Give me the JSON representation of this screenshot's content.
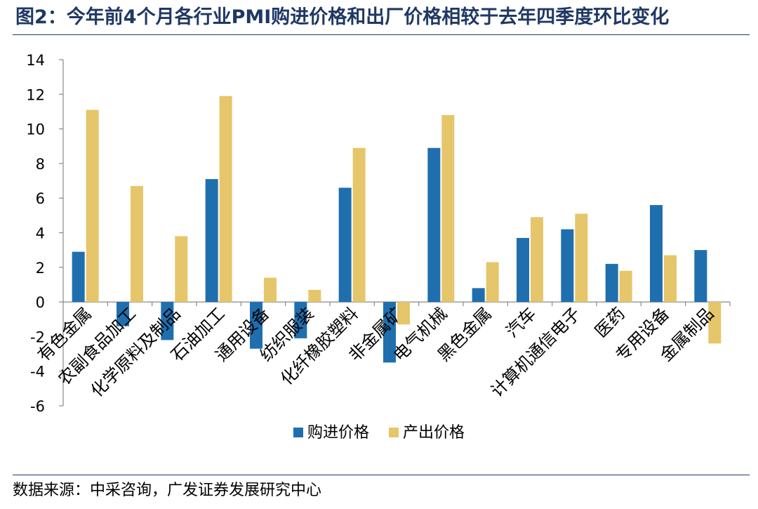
{
  "header": {
    "title": "图2：今年前4个月各行业PMI购进价格和出厂价格相较于去年四季度环比变化"
  },
  "footer": {
    "source": "数据来源：中采咨询，广发证券发展研究中心"
  },
  "chart_data": {
    "type": "bar",
    "title": "",
    "xlabel": "",
    "ylabel": "",
    "ylim": [
      -6,
      14
    ],
    "yticks": [
      "14",
      "12",
      "10",
      "8",
      "6",
      "4",
      "2",
      "0",
      "-2",
      "-4",
      "-6"
    ],
    "yticks_values": [
      14,
      12,
      10,
      8,
      6,
      4,
      2,
      0,
      -2,
      -4,
      -6
    ],
    "categories": [
      "有色金属",
      "农副食品加工",
      "化学原料及制品",
      "石油加工",
      "通用设备",
      "纺织服装",
      "化纤橡胶塑料",
      "非金属矿",
      "电气机械",
      "黑色金属",
      "汽车",
      "计算机通信电子",
      "医药",
      "专用设备",
      "金属制品"
    ],
    "series": [
      {
        "name": "购进价格",
        "color": "#1f6faf",
        "values": [
          2.9,
          -1.4,
          -2.2,
          7.1,
          -2.7,
          -2.1,
          6.6,
          -3.5,
          8.9,
          0.8,
          3.7,
          4.2,
          2.2,
          5.6,
          3.0
        ]
      },
      {
        "name": "产出价格",
        "color": "#e6c66a",
        "values": [
          11.1,
          6.7,
          3.8,
          11.9,
          1.4,
          0.7,
          8.9,
          -1.3,
          10.8,
          2.3,
          4.9,
          5.1,
          1.8,
          2.7,
          -2.4
        ]
      }
    ],
    "legend": {
      "position": "bottom",
      "items": [
        "购进价格",
        "产出价格"
      ]
    },
    "grid": false
  }
}
